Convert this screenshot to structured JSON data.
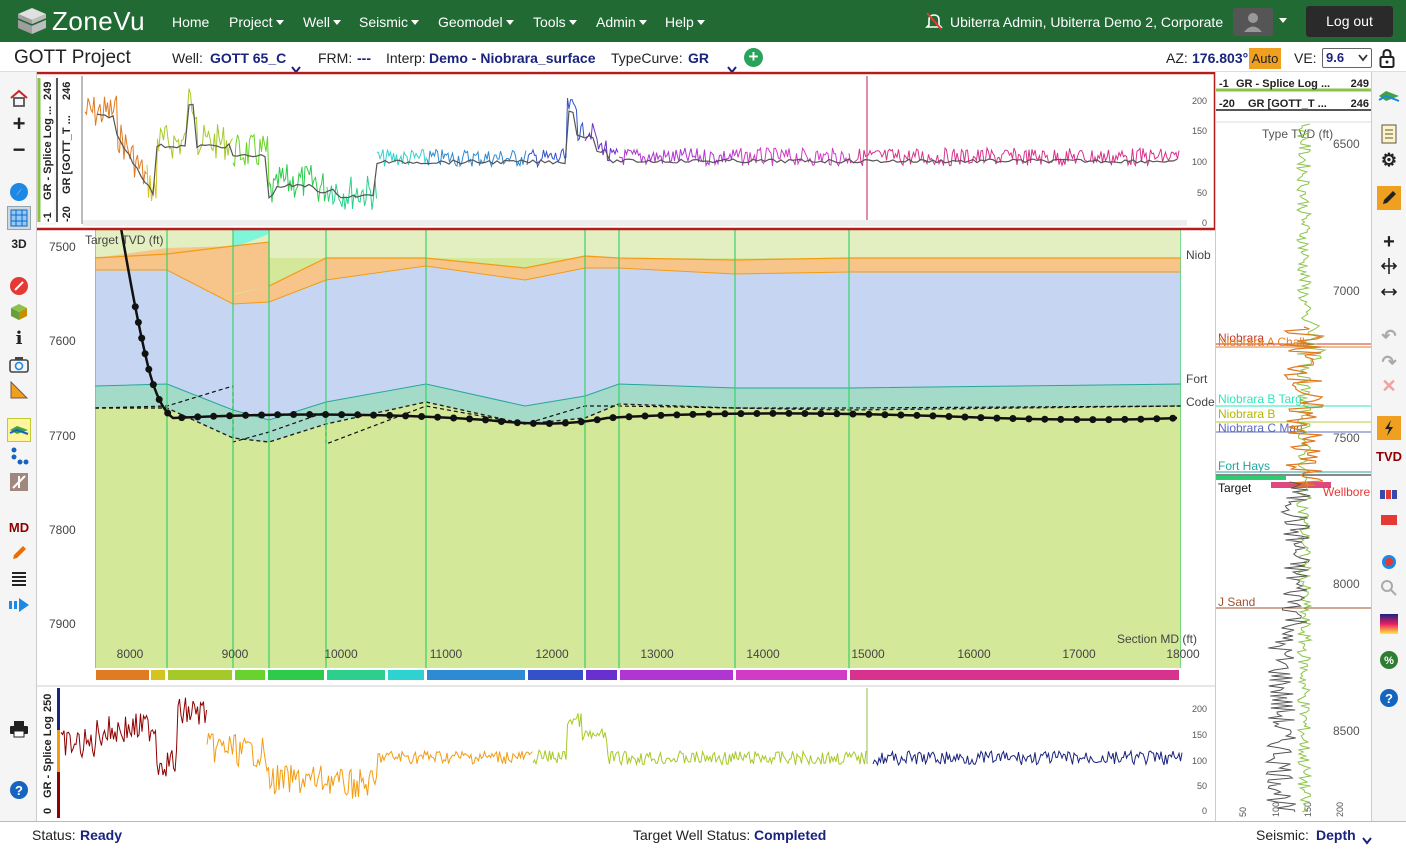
{
  "app": {
    "name": "ZoneVu"
  },
  "nav": {
    "items": [
      "Home",
      "Project",
      "Well",
      "Seismic",
      "Geomodel",
      "Tools",
      "Admin",
      "Help"
    ],
    "user": "Ubiterra Admin, Ubiterra Demo 2, Corporate",
    "logout": "Log out"
  },
  "project": {
    "title": "GOTT Project"
  },
  "controls": {
    "well_label": "Well:",
    "well_value": "GOTT 65_C",
    "frm_label": "FRM:",
    "frm_value": "---",
    "interp_label": "Interp:",
    "interp_value": "Demo - Niobrara_surface",
    "typecurve_label": "TypeCurve:",
    "typecurve_value": "GR",
    "az_label": "AZ:",
    "az_value": "176.803°",
    "auto_label": "Auto",
    "ve_label": "VE:",
    "ve_value": "9.6"
  },
  "top_panel": {
    "track_label_1": "GR - Splice Log ...",
    "track_label_2": "GR [GOTT_T ...",
    "scale_min_1": "-1",
    "scale_max_1": "249",
    "scale_min_2": "-20",
    "scale_max_2": "246",
    "right_ticks": [
      "200",
      "150",
      "100",
      "50",
      "0"
    ]
  },
  "section": {
    "target_label": "Target TVD (ft)",
    "section_label": "Section MD (ft)",
    "y_ticks": [
      "7500",
      "7600",
      "7700",
      "7800",
      "7900"
    ],
    "x_ticks": [
      "8000",
      "9000",
      "10000",
      "11000",
      "12000",
      "13000",
      "14000",
      "15000",
      "16000",
      "17000",
      "18000"
    ],
    "right_labels": [
      "Niob",
      "Fort",
      "Code"
    ]
  },
  "bottom_panel": {
    "track_label": "GR - Splice Log",
    "scale_min": "0",
    "scale_max": "250",
    "right_ticks": [
      "200",
      "150",
      "100",
      "50",
      "0"
    ]
  },
  "typelog": {
    "header_1": {
      "min": "-1",
      "name": "GR - Splice Log ...",
      "max": "249"
    },
    "header_2": {
      "min": "-20",
      "name": "GR [GOTT_T ...",
      "max": "246"
    },
    "axis_title": "Type TVD (ft)",
    "depth_ticks": [
      "6500",
      "7000",
      "7500",
      "8000",
      "8500"
    ],
    "x_ticks": [
      "50",
      "100",
      "150",
      "200"
    ],
    "tops": [
      "Niobrara",
      "Niobrara A Chalk",
      "Niobrara B Targ",
      "Niobrara B",
      "Niobrara C Mari",
      "Fort Hays",
      "Target",
      "Wellbore",
      "J Sand"
    ]
  },
  "right_toolbar": {
    "tvd": "TVD"
  },
  "left_toolbar": {
    "md": "MD"
  },
  "status": {
    "status_label": "Status:",
    "status_value": "Ready",
    "target_label": "Target Well Status:",
    "target_value": "Completed",
    "seismic_label": "Seismic:",
    "seismic_value": "Depth"
  },
  "colors": {
    "nav": "#216a33",
    "accent": "#1a237e",
    "highlight_border": "#b71c1c"
  }
}
